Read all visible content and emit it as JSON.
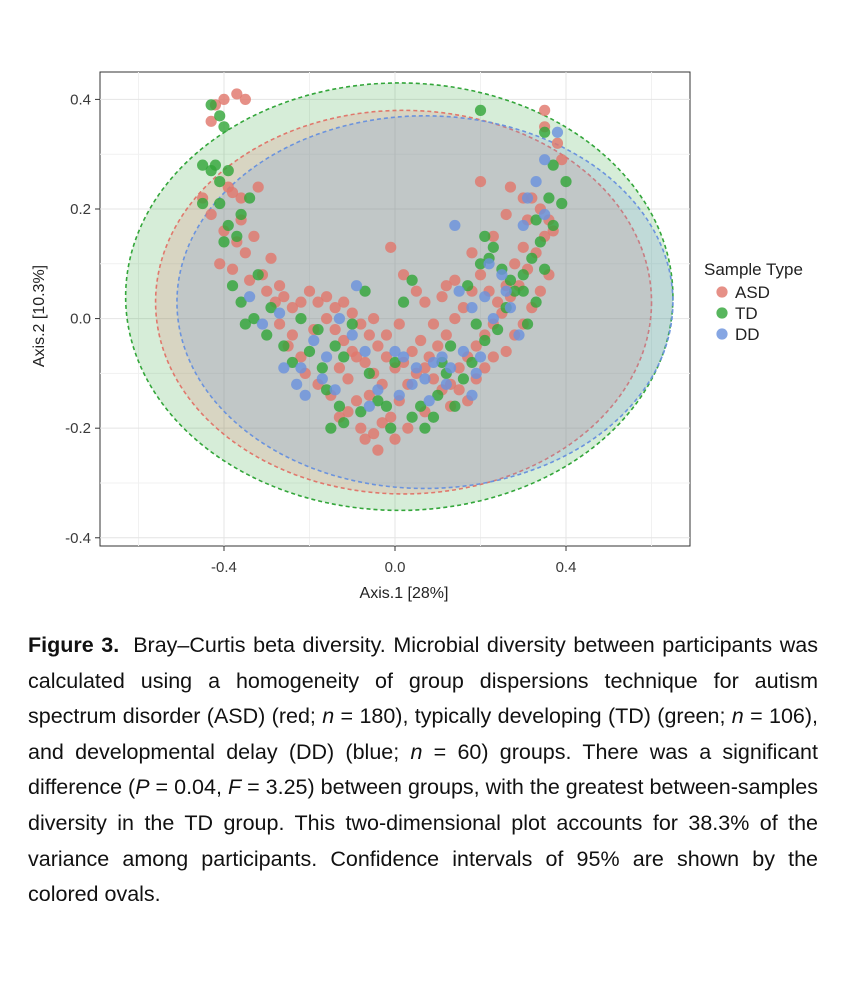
{
  "chart_data": {
    "type": "scatter",
    "title": "",
    "xlabel": "Axis.1 [28%]",
    "ylabel": "Axis.2 [10.3%]",
    "xlim": [
      -0.69,
      0.69
    ],
    "ylim": [
      -0.415,
      0.45
    ],
    "x_ticks": [
      -0.4,
      0.0,
      0.4
    ],
    "x_tick_labels": [
      "-0.4",
      "0.0",
      "0.4"
    ],
    "y_ticks": [
      0.4,
      0.2,
      0.0,
      -0.2,
      -0.4
    ],
    "y_tick_labels": [
      "0.4",
      "0.2",
      "0.0",
      "-0.2",
      "-0.4"
    ],
    "grid": true,
    "legend": {
      "title": "Sample Type",
      "position": "right",
      "entries": [
        "ASD",
        "TD",
        "DD"
      ]
    },
    "colors": {
      "ASD": "#e0786c",
      "TD": "#33a63a",
      "DD": "#6b93dd"
    },
    "ellipses": [
      {
        "series": "TD",
        "cx": 0.01,
        "cy": 0.04,
        "rx": 0.64,
        "ry": 0.39
      },
      {
        "series": "ASD",
        "cx": 0.02,
        "cy": 0.03,
        "rx": 0.58,
        "ry": 0.35
      },
      {
        "series": "DD",
        "cx": 0.07,
        "cy": 0.03,
        "rx": 0.58,
        "ry": 0.34
      }
    ],
    "series": [
      {
        "name": "ASD",
        "points": [
          [
            -0.42,
            0.39
          ],
          [
            -0.4,
            0.4
          ],
          [
            -0.37,
            0.41
          ],
          [
            -0.35,
            0.4
          ],
          [
            -0.43,
            0.36
          ],
          [
            0.35,
            0.38
          ],
          [
            0.35,
            0.35
          ],
          [
            0.38,
            0.32
          ],
          [
            0.39,
            0.29
          ],
          [
            -0.45,
            0.22
          ],
          [
            -0.43,
            0.19
          ],
          [
            -0.39,
            0.24
          ],
          [
            -0.38,
            0.23
          ],
          [
            -0.32,
            0.24
          ],
          [
            -0.36,
            0.22
          ],
          [
            -0.4,
            0.16
          ],
          [
            -0.37,
            0.14
          ],
          [
            -0.35,
            0.12
          ],
          [
            -0.41,
            0.1
          ],
          [
            -0.38,
            0.09
          ],
          [
            -0.34,
            0.07
          ],
          [
            -0.3,
            0.05
          ],
          [
            -0.28,
            0.03
          ],
          [
            -0.26,
            0.04
          ],
          [
            -0.24,
            0.02
          ],
          [
            -0.27,
            -0.01
          ],
          [
            -0.24,
            -0.03
          ],
          [
            -0.25,
            -0.05
          ],
          [
            -0.22,
            -0.07
          ],
          [
            -0.19,
            -0.02
          ],
          [
            -0.16,
            0.0
          ],
          [
            -0.14,
            -0.02
          ],
          [
            -0.12,
            -0.04
          ],
          [
            -0.1,
            -0.06
          ],
          [
            -0.07,
            -0.08
          ],
          [
            -0.05,
            -0.1
          ],
          [
            -0.03,
            -0.12
          ],
          [
            -0.06,
            -0.14
          ],
          [
            -0.09,
            -0.15
          ],
          [
            -0.11,
            -0.17
          ],
          [
            -0.08,
            -0.2
          ],
          [
            -0.05,
            -0.21
          ],
          [
            -0.03,
            -0.19
          ],
          [
            -0.01,
            -0.18
          ],
          [
            0.01,
            -0.15
          ],
          [
            0.03,
            -0.12
          ],
          [
            0.05,
            -0.1
          ],
          [
            0.07,
            -0.09
          ],
          [
            0.09,
            -0.11
          ],
          [
            0.11,
            -0.13
          ],
          [
            0.13,
            -0.12
          ],
          [
            0.15,
            -0.09
          ],
          [
            0.17,
            -0.07
          ],
          [
            0.19,
            -0.05
          ],
          [
            0.21,
            -0.03
          ],
          [
            0.23,
            -0.01
          ],
          [
            0.25,
            0.01
          ],
          [
            0.27,
            0.04
          ],
          [
            0.29,
            0.06
          ],
          [
            0.31,
            0.09
          ],
          [
            0.33,
            0.12
          ],
          [
            0.35,
            0.15
          ],
          [
            0.36,
            0.18
          ],
          [
            0.34,
            0.2
          ],
          [
            0.32,
            0.22
          ],
          [
            0.37,
            0.16
          ],
          [
            0.3,
            0.13
          ],
          [
            0.28,
            0.1
          ],
          [
            0.26,
            0.06
          ],
          [
            0.24,
            0.03
          ],
          [
            0.22,
            0.05
          ],
          [
            0.2,
            0.08
          ],
          [
            0.18,
            0.05
          ],
          [
            0.16,
            0.02
          ],
          [
            0.14,
            0.0
          ],
          [
            0.12,
            -0.03
          ],
          [
            0.1,
            -0.05
          ],
          [
            0.08,
            -0.07
          ],
          [
            0.06,
            -0.04
          ],
          [
            0.04,
            -0.06
          ],
          [
            0.02,
            -0.08
          ],
          [
            0.0,
            -0.09
          ],
          [
            -0.02,
            -0.07
          ],
          [
            -0.04,
            -0.05
          ],
          [
            -0.06,
            -0.03
          ],
          [
            -0.08,
            -0.01
          ],
          [
            -0.1,
            0.01
          ],
          [
            -0.12,
            0.03
          ],
          [
            -0.14,
            0.02
          ],
          [
            -0.16,
            0.04
          ],
          [
            -0.18,
            0.03
          ],
          [
            -0.2,
            0.05
          ],
          [
            -0.22,
            0.03
          ],
          [
            -0.29,
            0.11
          ],
          [
            -0.33,
            0.15
          ],
          [
            -0.36,
            0.18
          ],
          [
            -0.31,
            0.08
          ],
          [
            -0.27,
            0.06
          ],
          [
            -0.01,
            0.13
          ],
          [
            0.02,
            0.08
          ],
          [
            0.05,
            0.05
          ],
          [
            0.07,
            0.03
          ],
          [
            0.11,
            0.04
          ],
          [
            0.14,
            0.07
          ],
          [
            0.2,
            0.25
          ],
          [
            0.27,
            0.24
          ],
          [
            0.3,
            0.22
          ],
          [
            0.23,
            0.15
          ],
          [
            0.26,
            0.19
          ],
          [
            0.31,
            0.18
          ],
          [
            -0.21,
            -0.1
          ],
          [
            -0.18,
            -0.12
          ],
          [
            -0.15,
            -0.14
          ],
          [
            -0.13,
            -0.09
          ],
          [
            -0.11,
            -0.11
          ],
          [
            -0.09,
            -0.07
          ],
          [
            0.13,
            -0.16
          ],
          [
            0.15,
            -0.13
          ],
          [
            0.17,
            -0.15
          ],
          [
            0.19,
            -0.11
          ],
          [
            0.21,
            -0.09
          ],
          [
            0.23,
            -0.07
          ],
          [
            -0.07,
            -0.22
          ],
          [
            -0.04,
            -0.24
          ],
          [
            0.0,
            -0.22
          ],
          [
            0.03,
            -0.2
          ],
          [
            -0.13,
            -0.18
          ],
          [
            0.07,
            -0.17
          ],
          [
            0.36,
            0.08
          ],
          [
            0.34,
            0.05
          ],
          [
            0.32,
            0.02
          ],
          [
            0.3,
            -0.01
          ],
          [
            0.28,
            -0.03
          ],
          [
            0.26,
            -0.06
          ],
          [
            -0.02,
            -0.03
          ],
          [
            0.01,
            -0.01
          ],
          [
            -0.05,
            0.0
          ],
          [
            0.09,
            -0.01
          ],
          [
            0.12,
            0.06
          ],
          [
            0.18,
            0.12
          ]
        ]
      },
      {
        "name": "TD",
        "points": [
          [
            -0.43,
            0.39
          ],
          [
            -0.41,
            0.37
          ],
          [
            -0.4,
            0.35
          ],
          [
            0.2,
            0.38
          ],
          [
            0.35,
            0.34
          ],
          [
            0.37,
            0.28
          ],
          [
            0.4,
            0.25
          ],
          [
            -0.45,
            0.28
          ],
          [
            -0.42,
            0.28
          ],
          [
            -0.43,
            0.27
          ],
          [
            -0.39,
            0.27
          ],
          [
            -0.41,
            0.25
          ],
          [
            -0.45,
            0.21
          ],
          [
            -0.41,
            0.21
          ],
          [
            -0.34,
            0.22
          ],
          [
            -0.36,
            0.19
          ],
          [
            -0.39,
            0.17
          ],
          [
            -0.37,
            0.15
          ],
          [
            -0.4,
            0.14
          ],
          [
            -0.32,
            0.08
          ],
          [
            -0.29,
            0.02
          ],
          [
            -0.35,
            -0.01
          ],
          [
            -0.3,
            -0.03
          ],
          [
            -0.26,
            -0.05
          ],
          [
            -0.24,
            -0.08
          ],
          [
            -0.2,
            -0.06
          ],
          [
            -0.17,
            -0.09
          ],
          [
            -0.16,
            -0.13
          ],
          [
            -0.13,
            -0.16
          ],
          [
            -0.12,
            -0.19
          ],
          [
            -0.15,
            -0.2
          ],
          [
            -0.08,
            -0.17
          ],
          [
            -0.04,
            -0.15
          ],
          [
            -0.02,
            -0.16
          ],
          [
            -0.01,
            -0.2
          ],
          [
            0.04,
            -0.18
          ],
          [
            0.06,
            -0.16
          ],
          [
            0.07,
            -0.2
          ],
          [
            0.09,
            -0.18
          ],
          [
            0.1,
            -0.14
          ],
          [
            0.12,
            -0.1
          ],
          [
            0.14,
            -0.16
          ],
          [
            0.16,
            -0.11
          ],
          [
            0.18,
            -0.08
          ],
          [
            0.21,
            -0.04
          ],
          [
            0.24,
            -0.02
          ],
          [
            0.26,
            0.02
          ],
          [
            0.28,
            0.05
          ],
          [
            0.3,
            0.08
          ],
          [
            0.32,
            0.11
          ],
          [
            0.34,
            0.14
          ],
          [
            0.37,
            0.17
          ],
          [
            0.39,
            0.21
          ],
          [
            0.36,
            0.22
          ],
          [
            0.33,
            0.18
          ],
          [
            0.23,
            0.13
          ],
          [
            0.22,
            0.11
          ],
          [
            0.2,
            0.1
          ],
          [
            0.17,
            0.06
          ],
          [
            0.04,
            0.07
          ],
          [
            0.02,
            0.03
          ],
          [
            -0.07,
            0.05
          ],
          [
            -0.1,
            -0.01
          ],
          [
            -0.12,
            -0.07
          ],
          [
            -0.06,
            -0.1
          ],
          [
            0.0,
            -0.08
          ],
          [
            -0.18,
            -0.02
          ],
          [
            -0.14,
            -0.05
          ],
          [
            -0.22,
            0.0
          ],
          [
            0.33,
            0.03
          ],
          [
            0.31,
            -0.01
          ],
          [
            0.3,
            0.05
          ],
          [
            0.27,
            0.07
          ],
          [
            0.25,
            0.09
          ],
          [
            0.21,
            0.15
          ],
          [
            -0.38,
            0.06
          ],
          [
            -0.36,
            0.03
          ],
          [
            -0.33,
            0.0
          ],
          [
            0.35,
            0.09
          ],
          [
            0.19,
            -0.01
          ],
          [
            0.13,
            -0.05
          ],
          [
            0.11,
            -0.08
          ]
        ]
      },
      {
        "name": "DD",
        "points": [
          [
            0.38,
            0.34
          ],
          [
            0.35,
            0.29
          ],
          [
            0.33,
            0.25
          ],
          [
            0.31,
            0.22
          ],
          [
            0.35,
            0.19
          ],
          [
            0.3,
            0.17
          ],
          [
            0.14,
            0.17
          ],
          [
            0.22,
            0.1
          ],
          [
            0.25,
            0.08
          ],
          [
            0.21,
            0.04
          ],
          [
            0.18,
            0.02
          ],
          [
            0.15,
            0.05
          ],
          [
            -0.09,
            0.06
          ],
          [
            -0.13,
            0.0
          ],
          [
            -0.1,
            -0.03
          ],
          [
            -0.07,
            -0.06
          ],
          [
            0.0,
            -0.06
          ],
          [
            0.02,
            -0.07
          ],
          [
            0.05,
            -0.09
          ],
          [
            0.07,
            -0.11
          ],
          [
            0.09,
            -0.08
          ],
          [
            0.11,
            -0.07
          ],
          [
            0.13,
            -0.09
          ],
          [
            0.16,
            -0.06
          ],
          [
            0.19,
            -0.1
          ],
          [
            0.18,
            -0.14
          ],
          [
            -0.04,
            -0.13
          ],
          [
            -0.06,
            -0.16
          ],
          [
            -0.14,
            -0.13
          ],
          [
            -0.21,
            -0.14
          ],
          [
            -0.23,
            -0.12
          ],
          [
            -0.26,
            -0.09
          ],
          [
            -0.19,
            -0.04
          ],
          [
            -0.16,
            -0.07
          ],
          [
            0.27,
            0.02
          ],
          [
            0.29,
            -0.03
          ],
          [
            0.04,
            -0.12
          ],
          [
            0.08,
            -0.15
          ],
          [
            0.12,
            -0.12
          ],
          [
            0.2,
            -0.07
          ],
          [
            0.23,
            0.0
          ],
          [
            0.26,
            0.05
          ],
          [
            -0.34,
            0.04
          ],
          [
            -0.31,
            -0.01
          ],
          [
            -0.27,
            0.01
          ],
          [
            -0.22,
            -0.09
          ],
          [
            -0.17,
            -0.11
          ],
          [
            0.01,
            -0.14
          ]
        ]
      }
    ]
  },
  "caption": {
    "label": "Figure 3.",
    "parts": [
      {
        "t": "Bray–Curtis beta diversity. Microbial diversity between participants was calculated using a homogeneity of group dispersions technique for autism spectrum disorder (ASD) (red; "
      },
      {
        "i": "n"
      },
      {
        "t": " = 180), typically developing (TD) (green; "
      },
      {
        "i": "n"
      },
      {
        "t": " = 106), and developmental delay (DD) (blue; "
      },
      {
        "i": "n"
      },
      {
        "t": " = 60) groups. There was a significant difference ("
      },
      {
        "i": "P"
      },
      {
        "t": " = 0.04, "
      },
      {
        "i": "F"
      },
      {
        "t": " = 3.25) between groups, with the greatest between-samples diversity in the TD group. This two-dimensional plot accounts for 38.3% of the variance among participants. Confidence intervals of 95% are shown by the colored ovals."
      }
    ]
  }
}
